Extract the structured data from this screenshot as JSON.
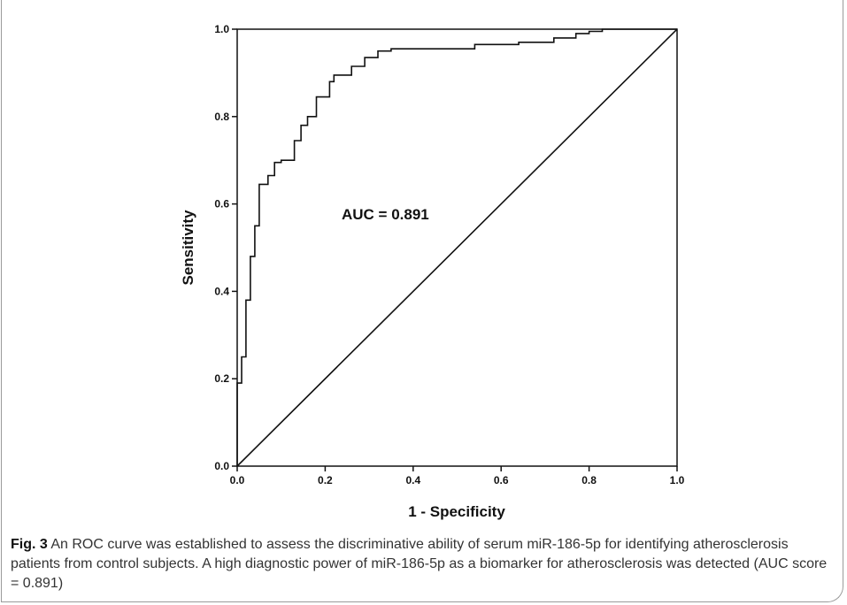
{
  "chart_data": {
    "type": "line",
    "xlabel": "1 - Specificity",
    "ylabel": "Sensitivity",
    "xlim": [
      0.0,
      1.0
    ],
    "ylim": [
      0.0,
      1.0
    ],
    "x_ticks": [
      "0.0",
      "0.2",
      "0.4",
      "0.6",
      "0.8",
      "1.0"
    ],
    "y_ticks": [
      "0.0",
      "0.2",
      "0.4",
      "0.6",
      "0.8",
      "1.0"
    ],
    "grid": false,
    "annotation": "AUC = 0.891",
    "series": [
      {
        "x": [
          0.0,
          0.0,
          0.01,
          0.01,
          0.02,
          0.02,
          0.03,
          0.03,
          0.04,
          0.04,
          0.05,
          0.05,
          0.07,
          0.07,
          0.085,
          0.085,
          0.1,
          0.1,
          0.13,
          0.13,
          0.145,
          0.145,
          0.16,
          0.16,
          0.18,
          0.18,
          0.21,
          0.21,
          0.22,
          0.22,
          0.26,
          0.26,
          0.29,
          0.29,
          0.32,
          0.32,
          0.35,
          0.35,
          0.54,
          0.54,
          0.64,
          0.64,
          0.72,
          0.72,
          0.77,
          0.77,
          0.8,
          0.8,
          0.83,
          0.83,
          1.0
        ],
        "y": [
          0.0,
          0.19,
          0.19,
          0.25,
          0.25,
          0.38,
          0.38,
          0.48,
          0.48,
          0.55,
          0.55,
          0.645,
          0.645,
          0.665,
          0.665,
          0.695,
          0.695,
          0.7,
          0.7,
          0.745,
          0.745,
          0.78,
          0.78,
          0.8,
          0.8,
          0.845,
          0.845,
          0.88,
          0.88,
          0.895,
          0.895,
          0.915,
          0.915,
          0.935,
          0.935,
          0.95,
          0.95,
          0.955,
          0.955,
          0.965,
          0.965,
          0.97,
          0.97,
          0.98,
          0.98,
          0.99,
          0.99,
          0.995,
          0.995,
          1.0,
          1.0
        ]
      },
      {
        "x": [
          0.0,
          1.0
        ],
        "y": [
          0.0,
          1.0
        ]
      }
    ]
  },
  "caption": {
    "label": "Fig. 3",
    "text": " An ROC curve was established to assess the discriminative ability of serum miR-186-5p for identifying atherosclerosis patients from control subjects. A high diagnostic power of miR-186-5p as a biomarker for atherosclerosis was detected (AUC score = 0.891)"
  },
  "colors": {
    "line": "#111111",
    "caption_text": "#333333"
  }
}
